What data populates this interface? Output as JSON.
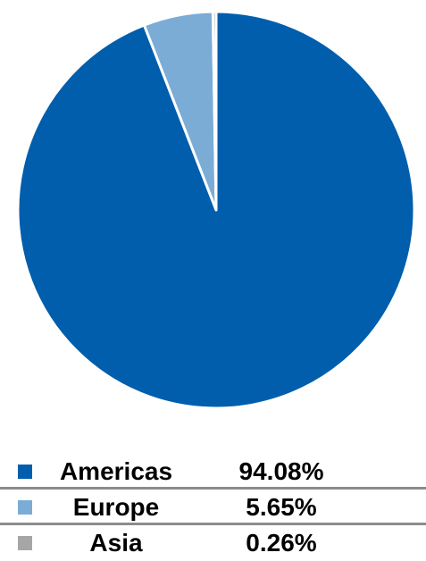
{
  "chart_data": {
    "type": "pie",
    "title": "",
    "categories": [
      "Americas",
      "Europe",
      "Asia"
    ],
    "values": [
      94.08,
      5.65,
      0.26
    ],
    "labels": [
      "94.08%",
      "5.65%",
      "0.26%"
    ],
    "colors": [
      "#005eac",
      "#7bacd6",
      "#a6a6a6"
    ],
    "start_angle_deg": 0,
    "direction": "clockwise",
    "slice_border_color": "#ffffff",
    "legend_placement": "bottom"
  }
}
